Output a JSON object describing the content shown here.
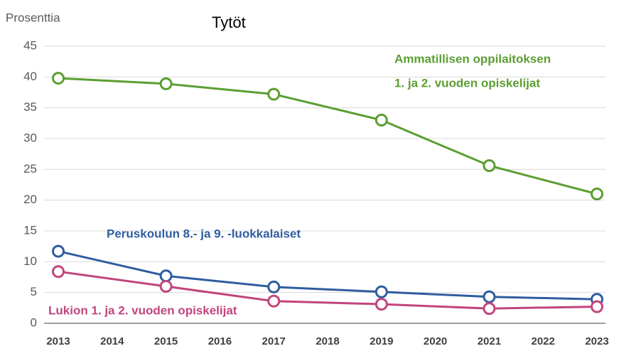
{
  "chart_data": {
    "type": "line",
    "title": "Tytöt",
    "y_label": "Prosenttia",
    "x": [
      2013,
      2015,
      2017,
      2019,
      2021,
      2023
    ],
    "xlim": [
      2013,
      2023
    ],
    "xticks": [
      2013,
      2014,
      2015,
      2016,
      2017,
      2018,
      2019,
      2020,
      2021,
      2022,
      2023
    ],
    "ylim": [
      0,
      45
    ],
    "yticks": [
      0,
      5,
      10,
      15,
      20,
      25,
      30,
      35,
      40,
      45
    ],
    "grid": true,
    "series": [
      {
        "color": "#5b9e32",
        "values": [
          39.8,
          38.9,
          37.2,
          33.0,
          25.6,
          21.0
        ]
      },
      {
        "color": "#2f5d9f",
        "values": [
          11.7,
          7.7,
          5.9,
          5.1,
          4.3,
          3.9
        ]
      },
      {
        "color": "#c2457c",
        "values": [
          8.4,
          6.0,
          3.6,
          3.1,
          2.4,
          2.7
        ]
      }
    ],
    "annotations": [
      {
        "text": "Ammatillisen  oppilaitoksen",
        "color": "#5b9e32"
      },
      {
        "text": "1.  ja 2. vuoden opiskelijat",
        "color": "#5b9e32"
      },
      {
        "text": "Peruskoulun 8.- ja 9. -luokkalaiset",
        "color": "#2f5d9f"
      },
      {
        "text": "Lukion 1. ja 2. vuoden opiskelijat",
        "color": "#c2457c"
      }
    ]
  }
}
